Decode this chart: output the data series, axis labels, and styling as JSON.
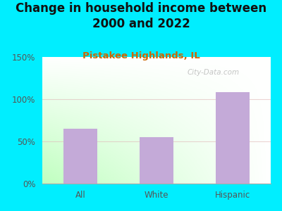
{
  "title": "Change in household income between\n2000 and 2022",
  "subtitle": "Pistakee Highlands, IL",
  "categories": [
    "All",
    "White",
    "Hispanic"
  ],
  "values": [
    65,
    55,
    108
  ],
  "bar_color": "#c4aad8",
  "figure_bg": "#00eeff",
  "plot_bg_colors": [
    "#d6eedd",
    "#f0f8f0",
    "#e8f4f0",
    "#ffffff"
  ],
  "title_fontsize": 12,
  "subtitle_fontsize": 9.5,
  "subtitle_color": "#cc6600",
  "tick_color": "#555555",
  "ylim": [
    0,
    150
  ],
  "yticks": [
    0,
    50,
    100,
    150
  ],
  "ytick_labels": [
    "0%",
    "50%",
    "100%",
    "150%"
  ],
  "watermark": "City-Data.com",
  "grid_color": "#e0b8b8",
  "grid_alpha": 0.6,
  "bar_width": 0.45
}
